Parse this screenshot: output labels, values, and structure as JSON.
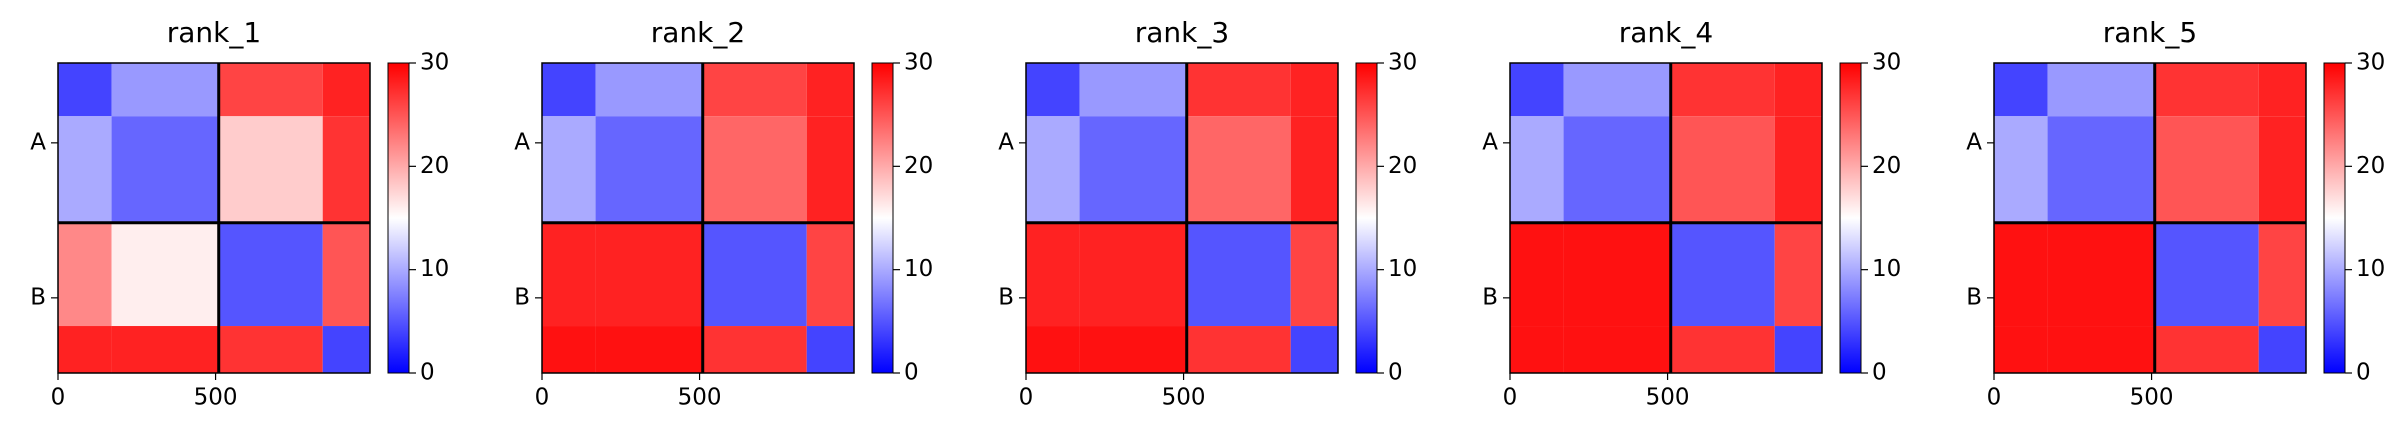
{
  "chart_data": [
    {
      "type": "heatmap",
      "title": "rank_1",
      "x_edges": [
        0,
        170,
        510,
        840,
        990
      ],
      "y_edges": [
        0,
        170,
        510,
        840,
        990
      ],
      "z": [
        [
          4,
          9,
          26,
          28
        ],
        [
          10,
          6,
          18,
          27
        ],
        [
          22,
          16,
          5,
          25
        ],
        [
          28,
          28,
          27,
          4
        ]
      ],
      "xlim": [
        0,
        990
      ],
      "ylim": [
        990,
        0
      ],
      "xticks": [
        0,
        500
      ],
      "yticks": [
        {
          "value": 255,
          "label": "A"
        },
        {
          "value": 750,
          "label": "B"
        }
      ],
      "chain_breaks": [
        510
      ],
      "colormap": "bwr",
      "clim": [
        0,
        30
      ],
      "cticks": [
        0,
        10,
        20,
        30
      ]
    },
    {
      "type": "heatmap",
      "title": "rank_2",
      "x_edges": [
        0,
        170,
        510,
        840,
        990
      ],
      "y_edges": [
        0,
        170,
        510,
        840,
        990
      ],
      "z": [
        [
          4,
          9,
          26,
          28
        ],
        [
          10,
          6,
          24,
          28
        ],
        [
          28,
          28,
          5,
          26
        ],
        [
          29,
          29,
          27,
          4
        ]
      ],
      "xlim": [
        0,
        990
      ],
      "ylim": [
        990,
        0
      ],
      "xticks": [
        0,
        500
      ],
      "yticks": [
        {
          "value": 255,
          "label": "A"
        },
        {
          "value": 750,
          "label": "B"
        }
      ],
      "chain_breaks": [
        510
      ],
      "colormap": "bwr",
      "clim": [
        0,
        30
      ],
      "cticks": [
        0,
        10,
        20,
        30
      ]
    },
    {
      "type": "heatmap",
      "title": "rank_3",
      "x_edges": [
        0,
        170,
        510,
        840,
        990
      ],
      "y_edges": [
        0,
        170,
        510,
        840,
        990
      ],
      "z": [
        [
          4,
          9,
          27,
          28
        ],
        [
          10,
          6,
          24,
          28
        ],
        [
          28,
          28,
          5,
          26
        ],
        [
          29,
          29,
          27,
          4
        ]
      ],
      "xlim": [
        0,
        990
      ],
      "ylim": [
        990,
        0
      ],
      "xticks": [
        0,
        500
      ],
      "yticks": [
        {
          "value": 255,
          "label": "A"
        },
        {
          "value": 750,
          "label": "B"
        }
      ],
      "chain_breaks": [
        510
      ],
      "colormap": "bwr",
      "clim": [
        0,
        30
      ],
      "cticks": [
        0,
        10,
        20,
        30
      ]
    },
    {
      "type": "heatmap",
      "title": "rank_4",
      "x_edges": [
        0,
        170,
        510,
        840,
        990
      ],
      "y_edges": [
        0,
        170,
        510,
        840,
        990
      ],
      "z": [
        [
          4,
          9,
          27,
          28
        ],
        [
          10,
          6,
          25,
          28
        ],
        [
          29,
          29,
          5,
          26
        ],
        [
          29,
          29,
          27,
          4
        ]
      ],
      "xlim": [
        0,
        990
      ],
      "ylim": [
        990,
        0
      ],
      "xticks": [
        0,
        500
      ],
      "yticks": [
        {
          "value": 255,
          "label": "A"
        },
        {
          "value": 750,
          "label": "B"
        }
      ],
      "chain_breaks": [
        510
      ],
      "colormap": "bwr",
      "clim": [
        0,
        30
      ],
      "cticks": [
        0,
        10,
        20,
        30
      ]
    },
    {
      "type": "heatmap",
      "title": "rank_5",
      "x_edges": [
        0,
        170,
        510,
        840,
        990
      ],
      "y_edges": [
        0,
        170,
        510,
        840,
        990
      ],
      "z": [
        [
          4,
          9,
          27,
          28
        ],
        [
          10,
          6,
          25,
          28
        ],
        [
          29,
          29,
          5,
          26
        ],
        [
          29,
          29,
          27,
          4
        ]
      ],
      "xlim": [
        0,
        990
      ],
      "ylim": [
        990,
        0
      ],
      "xticks": [
        0,
        500
      ],
      "yticks": [
        {
          "value": 255,
          "label": "A"
        },
        {
          "value": 750,
          "label": "B"
        }
      ],
      "chain_breaks": [
        510
      ],
      "colormap": "bwr",
      "clim": [
        0,
        30
      ],
      "cticks": [
        0,
        10,
        20,
        30
      ]
    }
  ]
}
